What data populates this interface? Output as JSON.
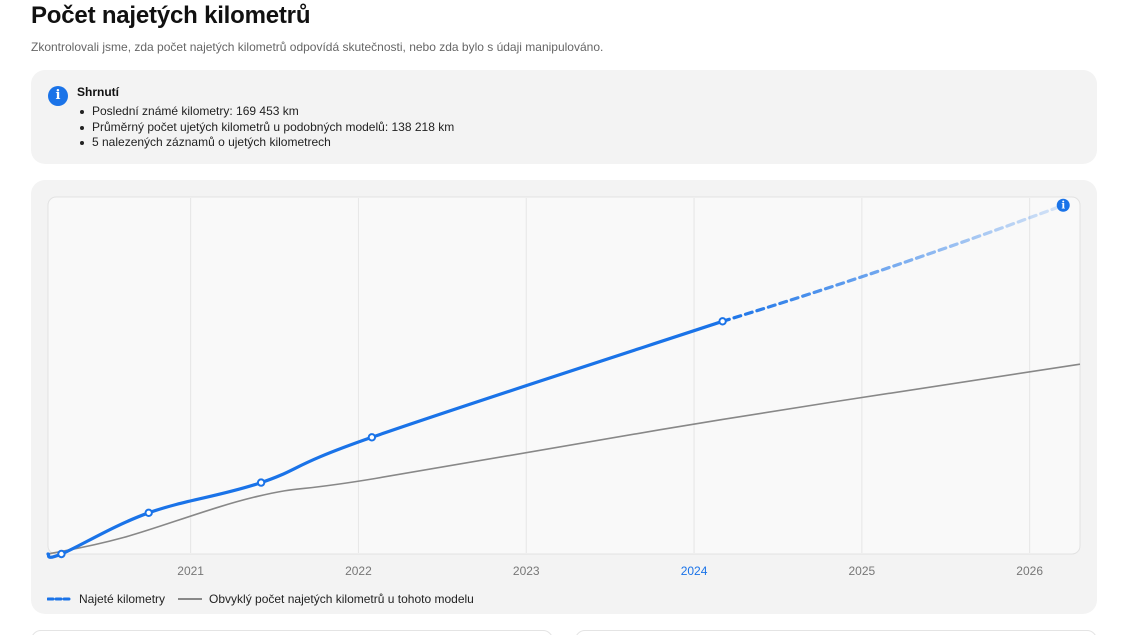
{
  "header": {
    "title": "Počet najetých kilometrů",
    "subtitle": "Zkontrolovali jsme, zda počet najetých kilometrů odpovídá skutečnosti, nebo zda bylo s údaji manipulováno."
  },
  "summary": {
    "icon": "info-icon",
    "title": "Shrnutí",
    "items": [
      "Poslední známé kilometry: 169 453 km",
      "Průměrný počet ujetých kilometrů u podobných modelů: 138 218 km",
      "5 nalezených záznamů o ujetých kilometrech"
    ]
  },
  "colors": {
    "accent": "#1a73e8",
    "typical": "#888888",
    "highlight_tick": "#1a73e8"
  },
  "chart_data": {
    "type": "line",
    "x_ticks": [
      "2021",
      "2022",
      "2023",
      "2024",
      "2025",
      "2026"
    ],
    "highlighted_tick": "2024",
    "x_range": [
      2020.15,
      2026.3
    ],
    "y_range": [
      0,
      260000
    ],
    "grid": true,
    "legend_placement": "bottom-left",
    "series": [
      {
        "name": "Najeté kilometry",
        "style": "solid-then-dashed-projection",
        "records": [
          {
            "x": 2020.23,
            "y": 0
          },
          {
            "x": 2020.75,
            "y": 30000
          },
          {
            "x": 2021.42,
            "y": 52000
          },
          {
            "x": 2022.08,
            "y": 85000
          },
          {
            "x": 2024.17,
            "y": 169453
          }
        ],
        "projection_end": {
          "x": 2026.2,
          "y": 254000
        }
      },
      {
        "name": "Obvyklý počet najetých kilometrů u tohoto modelu",
        "style": "solid",
        "points": [
          {
            "x": 2020.15,
            "y": 0
          },
          {
            "x": 2020.6,
            "y": 12000
          },
          {
            "x": 2021.4,
            "y": 42000
          },
          {
            "x": 2022.1,
            "y": 55000
          },
          {
            "x": 2024.17,
            "y": 98000
          },
          {
            "x": 2026.3,
            "y": 138218
          }
        ]
      }
    ]
  }
}
